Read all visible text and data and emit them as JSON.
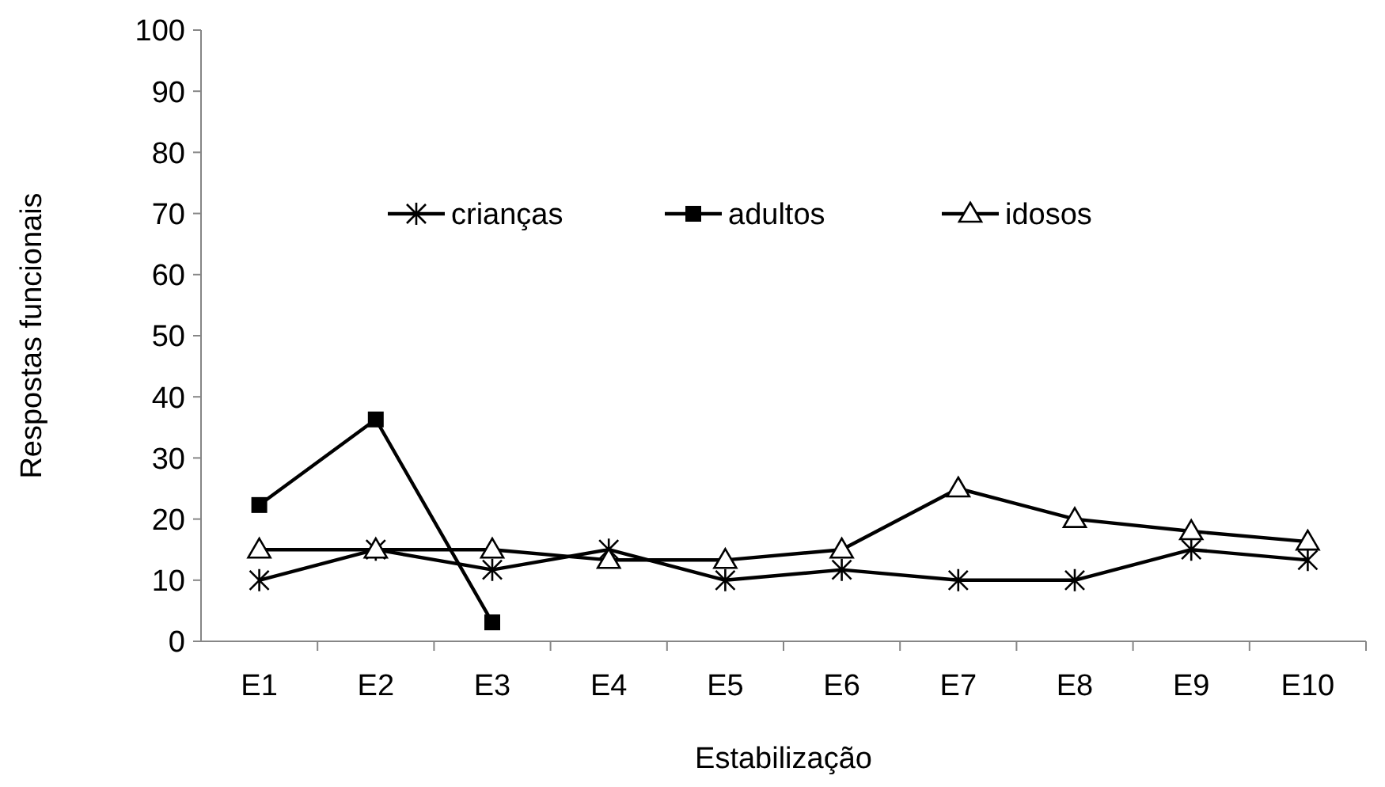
{
  "chart_data": {
    "type": "line",
    "xlabel": "Estabilização",
    "ylabel": "Respostas funcionais",
    "categories": [
      "E1",
      "E2",
      "E3",
      "E4",
      "E5",
      "E6",
      "E7",
      "E8",
      "E9",
      "E10"
    ],
    "series": [
      {
        "name": "crianças",
        "color": "#000000",
        "marker": "cross",
        "values": [
          10,
          15,
          11.7,
          15,
          10,
          11.7,
          10,
          10,
          15,
          13.3
        ]
      },
      {
        "name": "adultos",
        "color": "#000000",
        "marker": "square",
        "values": [
          22.3,
          36.3,
          3.1,
          null,
          null,
          null,
          null,
          null,
          null,
          null
        ]
      },
      {
        "name": "idosos",
        "color": "#000000",
        "marker": "triangle",
        "values": [
          15,
          15,
          15,
          13.3,
          13.3,
          15,
          25,
          20,
          18,
          16.3
        ]
      }
    ],
    "ylim": [
      0,
      100
    ],
    "yticks": [
      0,
      10,
      20,
      30,
      40,
      50,
      60,
      70,
      80,
      90,
      100
    ],
    "grid": false,
    "legend": "top",
    "line_style": "solid"
  }
}
